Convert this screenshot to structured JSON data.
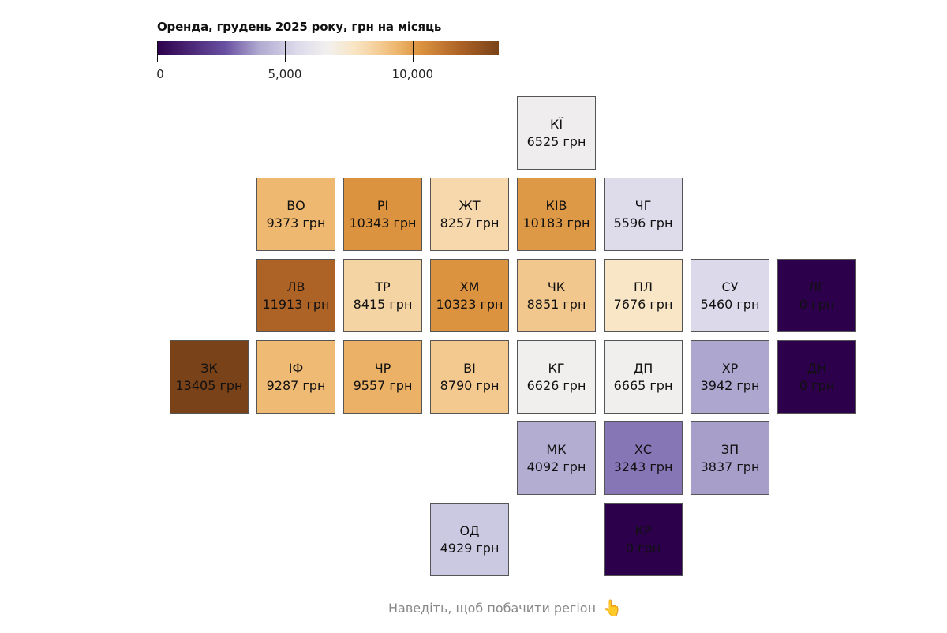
{
  "chart_data": {
    "type": "heatmap",
    "title": "Оренда, грудень 2025 року, грн на місяць",
    "unit": "грн",
    "legend": {
      "ticks": [
        0,
        5000,
        10000
      ],
      "tick_labels": [
        "0",
        "5,000",
        "10,000"
      ],
      "range": [
        0,
        13405
      ]
    },
    "color_scale": [
      [
        0,
        "#2d004b"
      ],
      [
        2700,
        "#6a51a3"
      ],
      [
        4000,
        "#b0aad0"
      ],
      [
        5500,
        "#dcdaeb"
      ],
      [
        6700,
        "#f2f0ee"
      ],
      [
        7700,
        "#f8e6c6"
      ],
      [
        8500,
        "#f5d2a0"
      ],
      [
        9400,
        "#eeb76e"
      ],
      [
        10300,
        "#dc9440"
      ],
      [
        11900,
        "#ad6226"
      ],
      [
        13405,
        "#7a4218"
      ]
    ],
    "tiles": [
      {
        "code": "КЇ",
        "value": 6525,
        "row": 0,
        "col": 4
      },
      {
        "code": "ВО",
        "value": 9373,
        "row": 1,
        "col": 1
      },
      {
        "code": "РІ",
        "value": 10343,
        "row": 1,
        "col": 2
      },
      {
        "code": "ЖТ",
        "value": 8257,
        "row": 1,
        "col": 3
      },
      {
        "code": "КІВ",
        "value": 10183,
        "row": 1,
        "col": 4
      },
      {
        "code": "ЧГ",
        "value": 5596,
        "row": 1,
        "col": 5
      },
      {
        "code": "ЛВ",
        "value": 11913,
        "row": 2,
        "col": 1
      },
      {
        "code": "ТР",
        "value": 8415,
        "row": 2,
        "col": 2
      },
      {
        "code": "ХМ",
        "value": 10323,
        "row": 2,
        "col": 3
      },
      {
        "code": "ЧК",
        "value": 8851,
        "row": 2,
        "col": 4
      },
      {
        "code": "ПЛ",
        "value": 7676,
        "row": 2,
        "col": 5
      },
      {
        "code": "СУ",
        "value": 5460,
        "row": 2,
        "col": 6
      },
      {
        "code": "ЛГ",
        "value": 0,
        "row": 2,
        "col": 7
      },
      {
        "code": "ЗК",
        "value": 13405,
        "row": 3,
        "col": 0
      },
      {
        "code": "ІФ",
        "value": 9287,
        "row": 3,
        "col": 1
      },
      {
        "code": "ЧР",
        "value": 9557,
        "row": 3,
        "col": 2
      },
      {
        "code": "ВІ",
        "value": 8790,
        "row": 3,
        "col": 3
      },
      {
        "code": "КГ",
        "value": 6626,
        "row": 3,
        "col": 4
      },
      {
        "code": "ДП",
        "value": 6665,
        "row": 3,
        "col": 5
      },
      {
        "code": "ХР",
        "value": 3942,
        "row": 3,
        "col": 6
      },
      {
        "code": "ДН",
        "value": 0,
        "row": 3,
        "col": 7
      },
      {
        "code": "МК",
        "value": 4092,
        "row": 4,
        "col": 4
      },
      {
        "code": "ХС",
        "value": 3243,
        "row": 4,
        "col": 5
      },
      {
        "code": "ЗП",
        "value": 3837,
        "row": 4,
        "col": 6
      },
      {
        "code": "ОД",
        "value": 4929,
        "row": 5,
        "col": 3
      },
      {
        "code": "КР",
        "value": 0,
        "row": 5,
        "col": 5
      }
    ]
  },
  "hint": {
    "text": "Наведіть, щоб побачити регіон",
    "icon": "pointer-hand-icon"
  }
}
